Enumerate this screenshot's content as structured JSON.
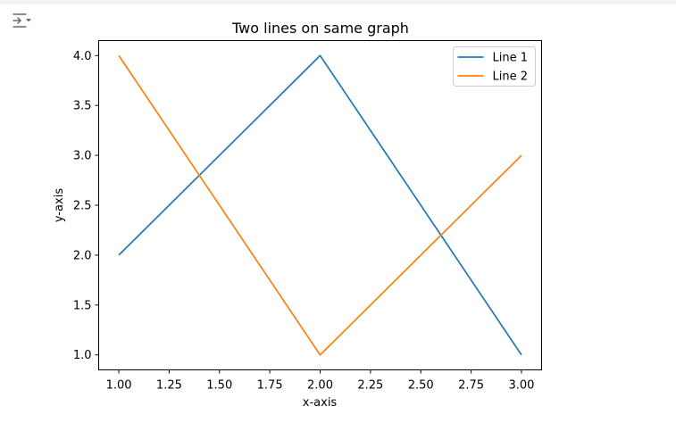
{
  "cell_output": {
    "toggle_icon": "output-collapse-icon"
  },
  "chart_data": {
    "type": "line",
    "title": "Two lines on same graph",
    "xlabel": "x-axis",
    "ylabel": "y-axis",
    "xlim": [
      0.9,
      3.1
    ],
    "ylim": [
      0.85,
      4.15
    ],
    "x_ticks": [
      1.0,
      1.25,
      1.5,
      1.75,
      2.0,
      2.25,
      2.5,
      2.75,
      3.0
    ],
    "x_tick_labels": [
      "1.00",
      "1.25",
      "1.50",
      "1.75",
      "2.00",
      "2.25",
      "2.50",
      "2.75",
      "3.00"
    ],
    "y_ticks": [
      1.0,
      1.5,
      2.0,
      2.5,
      3.0,
      3.5,
      4.0
    ],
    "y_tick_labels": [
      "1.0",
      "1.5",
      "2.0",
      "2.5",
      "3.0",
      "3.5",
      "4.0"
    ],
    "grid": false,
    "legend_position": "upper right",
    "series": [
      {
        "name": "Line 1",
        "color": "#1f77b4",
        "x": [
          1,
          2,
          3
        ],
        "y": [
          2,
          4,
          1
        ]
      },
      {
        "name": "Line 2",
        "color": "#ff7f0e",
        "x": [
          1,
          2,
          3
        ],
        "y": [
          4,
          1,
          3
        ]
      }
    ]
  }
}
